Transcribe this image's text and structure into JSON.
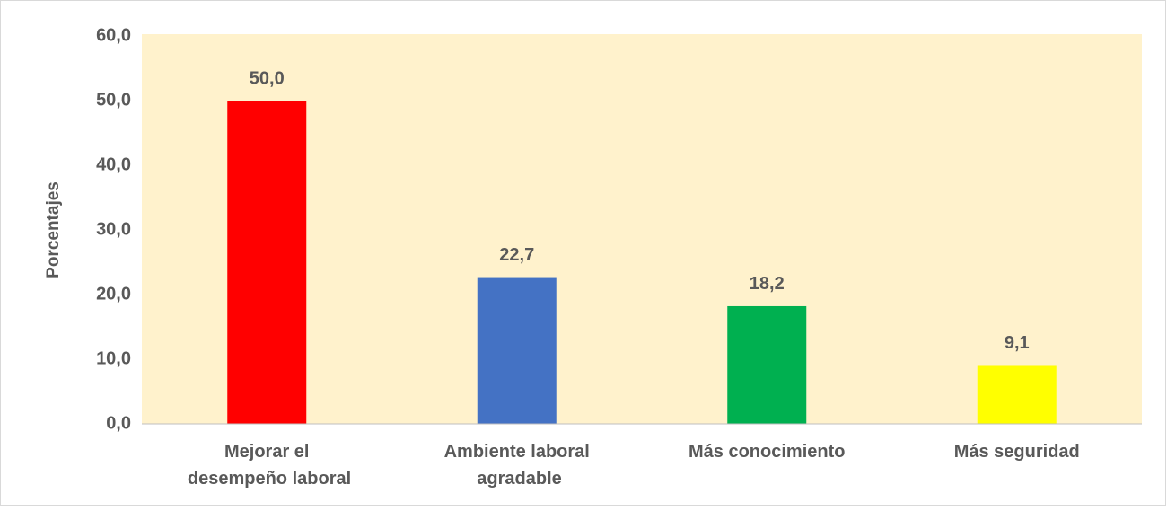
{
  "chart_data": {
    "type": "bar",
    "y_label": "Porcentajes",
    "categories": [
      "Mejorar el desempeño laboral",
      "Ambiente laboral agradable",
      "Más conocimiento",
      "Más seguridad"
    ],
    "values": [
      50.0,
      22.7,
      18.2,
      9.1
    ],
    "value_labels": [
      "50,0",
      "22,7",
      "18,2",
      "9,1"
    ],
    "colors": [
      "#ff0000",
      "#4472c4",
      "#00b050",
      "#ffff00"
    ],
    "plot_background": "#fff2cc",
    "ylim": [
      0,
      60
    ],
    "yticks": [
      {
        "value": 0,
        "label": "0,0"
      },
      {
        "value": 10,
        "label": "10,0"
      },
      {
        "value": 20,
        "label": "20,0"
      },
      {
        "value": 30,
        "label": "30,0"
      },
      {
        "value": 40,
        "label": "40,0"
      },
      {
        "value": 50,
        "label": "50,0"
      },
      {
        "value": 60,
        "label": "60,0"
      }
    ],
    "grid": false
  }
}
